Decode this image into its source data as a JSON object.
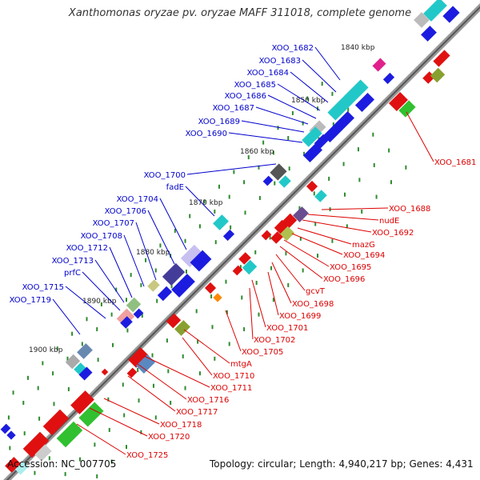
{
  "title": "Xanthomonas oryzae pv. oryzae MAFF 311018, complete genome",
  "accession": "Accession: NC_007705",
  "info": "Topology: circular; Length: 4,940,217 bp; Genes: 4,431",
  "kbp_ticks": [
    "1840 kbp",
    "1850 kbp",
    "1860 kbp",
    "1870 kbp",
    "1880 kbp",
    "1890 kbp",
    "1900 kbp"
  ],
  "genes_plus": [
    "XOO_1682",
    "XOO_1683",
    "XOO_1684",
    "XOO_1685",
    "XOO_1686",
    "XOO_1687",
    "XOO_1689",
    "XOO_1690",
    "XOO_1700",
    "fadE",
    "XOO_1704",
    "XOO_1706",
    "XOO_1707",
    "XOO_1708",
    "XOO_1712",
    "XOO_1713",
    "prfC",
    "XOO_1715",
    "XOO_1719"
  ],
  "genes_minus": [
    "XOO_1681",
    "XOO_1688",
    "nudE",
    "XOO_1692",
    "mazG",
    "XOO_1694",
    "XOO_1695",
    "XOO_1696",
    "gcvT",
    "XOO_1698",
    "XOO_1699",
    "XOO_1701",
    "XOO_1702",
    "XOO_1705",
    "mtgA",
    "XOO_1710",
    "XOO_1711",
    "XOO_1716",
    "XOO_1717",
    "XOO_1718",
    "XOO_1720",
    "XOO_1725"
  ],
  "colors": {
    "plus_label": "#0000cc",
    "minus_label": "#dd0000",
    "backbone": "#777777",
    "dots": "#2e8b2e"
  }
}
